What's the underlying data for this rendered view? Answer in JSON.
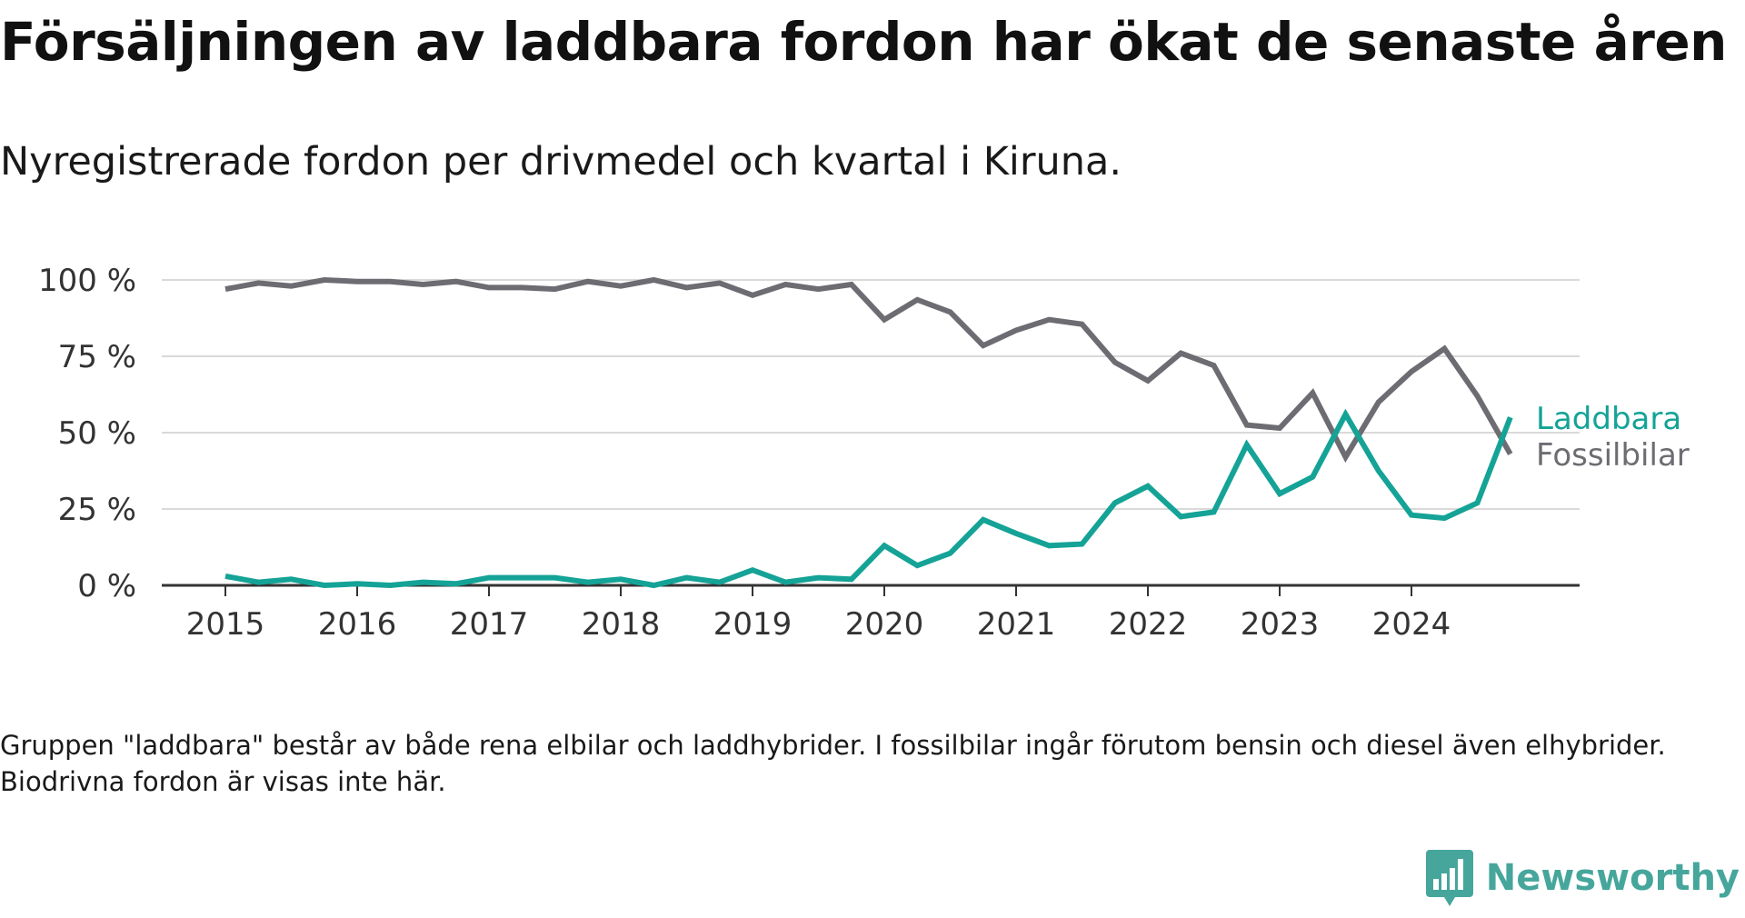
{
  "title": "Försäljningen av laddbara fordon har ökat de senaste åren",
  "subtitle": "Nyregistrerade fordon per drivmedel och kvartal i Kiruna.",
  "note": "Gruppen \"laddbara\" består av både rena elbilar och laddhybrider. I fossilbilar ingår förutom bensin och diesel även elhybrider. Biodrivna fordon är visas inte här.",
  "brand": {
    "name": "Newsworthy",
    "logo_icon": "bar-chart-speech-bubble-icon",
    "color": "#46a69c"
  },
  "chart_data": {
    "type": "line",
    "title": "",
    "xlabel": "",
    "ylabel": "",
    "x": [
      "2015Q1",
      "2015Q2",
      "2015Q3",
      "2015Q4",
      "2016Q1",
      "2016Q2",
      "2016Q3",
      "2016Q4",
      "2017Q1",
      "2017Q2",
      "2017Q3",
      "2017Q4",
      "2018Q1",
      "2018Q2",
      "2018Q3",
      "2018Q4",
      "2019Q1",
      "2019Q2",
      "2019Q3",
      "2019Q4",
      "2020Q1",
      "2020Q2",
      "2020Q3",
      "2020Q4",
      "2021Q1",
      "2021Q2",
      "2021Q3",
      "2021Q4",
      "2022Q1",
      "2022Q2",
      "2022Q3",
      "2022Q4",
      "2023Q1",
      "2023Q2",
      "2023Q3",
      "2023Q4",
      "2024Q1",
      "2024Q2",
      "2024Q3",
      "2024Q4"
    ],
    "x_tick_labels": [
      "2015",
      "2016",
      "2017",
      "2018",
      "2019",
      "2020",
      "2021",
      "2022",
      "2023",
      "2024"
    ],
    "y_tick_values": [
      0,
      25,
      50,
      75,
      100
    ],
    "y_tick_labels": [
      "0 %",
      "25 %",
      "50 %",
      "75 %",
      "100 %"
    ],
    "ylim": [
      0,
      100
    ],
    "grid": true,
    "legend": "inline labels at line ends (right)",
    "series": [
      {
        "name": "Laddbara",
        "color": "#14a396",
        "values": [
          3,
          1,
          2,
          0,
          0.5,
          0,
          1,
          0.5,
          2.5,
          2.5,
          2.5,
          1,
          2,
          0,
          2.5,
          1,
          5,
          1,
          2.5,
          2,
          13,
          6.5,
          10.5,
          21.5,
          17,
          13,
          13.5,
          27,
          32.5,
          22.5,
          24,
          46,
          30,
          35.5,
          56,
          37.5,
          23,
          22,
          27,
          55
        ]
      },
      {
        "name": "Fossilbilar",
        "color": "#6d6c72",
        "values": [
          97,
          99,
          98,
          100,
          99.5,
          99.5,
          98.5,
          99.5,
          97.5,
          97.5,
          97,
          99.5,
          98,
          100,
          97.5,
          99,
          95,
          98.5,
          97,
          98.5,
          87,
          93.5,
          89.5,
          78.5,
          83.5,
          87,
          85.5,
          73,
          67,
          76,
          72,
          52.5,
          51.5,
          63,
          42,
          60,
          70,
          77.5,
          62,
          43
        ]
      }
    ]
  }
}
